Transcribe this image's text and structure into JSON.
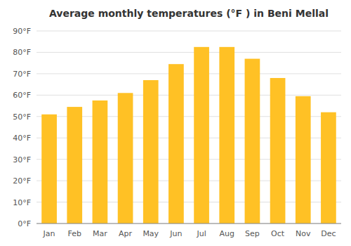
{
  "chart_data": {
    "type": "bar",
    "title": "Average monthly temperatures (°F ) in Beni Mellal",
    "categories": [
      "Jan",
      "Feb",
      "Mar",
      "Apr",
      "May",
      "Jun",
      "Jul",
      "Aug",
      "Sep",
      "Oct",
      "Nov",
      "Dec"
    ],
    "values": [
      51,
      54.5,
      57.5,
      61,
      67,
      74.5,
      82.5,
      82.5,
      77,
      68,
      59.5,
      52
    ],
    "color": "#FFC125",
    "ylim": [
      0,
      90
    ],
    "yticks": [
      {
        "value": 0,
        "label": "0°F"
      },
      {
        "value": 10,
        "label": "10°F"
      },
      {
        "value": 20,
        "label": "20°F"
      },
      {
        "value": 30,
        "label": "30°F"
      },
      {
        "value": 40,
        "label": "40°F"
      },
      {
        "value": 50,
        "label": "50°F"
      },
      {
        "value": 60,
        "label": "60°F"
      },
      {
        "value": 70,
        "label": "70°F"
      },
      {
        "value": 80,
        "label": "80°F"
      },
      {
        "value": 90,
        "label": "90°F"
      }
    ],
    "grid": true
  }
}
